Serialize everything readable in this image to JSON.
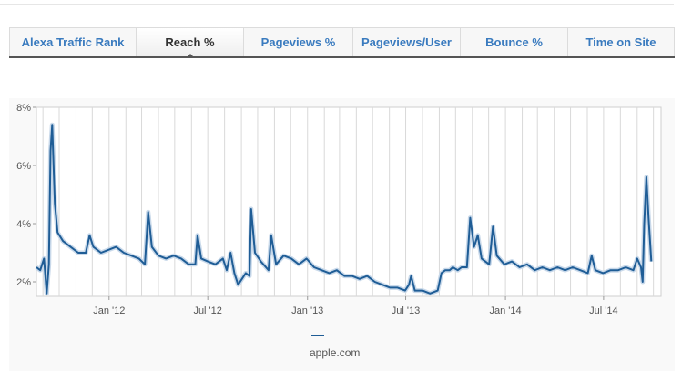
{
  "tabs": [
    {
      "label": "Alexa Traffic Rank",
      "active": false
    },
    {
      "label": "Reach %",
      "active": true
    },
    {
      "label": "Pageviews %",
      "active": false
    },
    {
      "label": "Pageviews/User",
      "active": false
    },
    {
      "label": "Bounce %",
      "active": false
    },
    {
      "label": "Time on Site",
      "active": false
    }
  ],
  "colors": {
    "series": "#1f5d96",
    "tab_link": "#3a7bbf",
    "grid": "#d9d9d9"
  },
  "chart_data": {
    "type": "line",
    "title": "",
    "xlabel": "",
    "ylabel": "",
    "ylim": [
      1.5,
      8
    ],
    "yticks": [
      {
        "value": 2,
        "label": "2%"
      },
      {
        "value": 4,
        "label": "4%"
      },
      {
        "value": 6,
        "label": "6%"
      },
      {
        "value": 8,
        "label": "8%"
      }
    ],
    "xticks": [
      {
        "date": "2012-01-01",
        "label": "Jan '12"
      },
      {
        "date": "2012-07-01",
        "label": "Jul '12"
      },
      {
        "date": "2013-01-01",
        "label": "Jan '13"
      },
      {
        "date": "2013-07-01",
        "label": "Jul '13"
      },
      {
        "date": "2014-01-01",
        "label": "Jan '14"
      },
      {
        "date": "2014-07-01",
        "label": "Jul '14"
      }
    ],
    "xlim": [
      "2011-08-20",
      "2014-10-15"
    ],
    "grid": true,
    "legend_position": "bottom",
    "series": [
      {
        "name": "apple.com",
        "points": [
          [
            "2011-08-20",
            2.5
          ],
          [
            "2011-08-27",
            2.4
          ],
          [
            "2011-09-03",
            2.8
          ],
          [
            "2011-09-08",
            1.6
          ],
          [
            "2011-09-12",
            2.6
          ],
          [
            "2011-09-15",
            6.5
          ],
          [
            "2011-09-18",
            7.4
          ],
          [
            "2011-09-23",
            4.7
          ],
          [
            "2011-09-28",
            3.7
          ],
          [
            "2011-10-08",
            3.4
          ],
          [
            "2011-10-22",
            3.2
          ],
          [
            "2011-11-05",
            3.0
          ],
          [
            "2011-11-19",
            3.0
          ],
          [
            "2011-11-26",
            3.6
          ],
          [
            "2011-12-03",
            3.2
          ],
          [
            "2011-12-17",
            3.0
          ],
          [
            "2011-12-31",
            3.1
          ],
          [
            "2012-01-14",
            3.2
          ],
          [
            "2012-01-28",
            3.0
          ],
          [
            "2012-02-11",
            2.9
          ],
          [
            "2012-02-25",
            2.8
          ],
          [
            "2012-03-07",
            2.6
          ],
          [
            "2012-03-13",
            4.4
          ],
          [
            "2012-03-20",
            3.2
          ],
          [
            "2012-04-01",
            2.9
          ],
          [
            "2012-04-15",
            2.8
          ],
          [
            "2012-04-29",
            2.9
          ],
          [
            "2012-05-13",
            2.8
          ],
          [
            "2012-05-27",
            2.6
          ],
          [
            "2012-06-08",
            2.6
          ],
          [
            "2012-06-12",
            3.6
          ],
          [
            "2012-06-19",
            2.8
          ],
          [
            "2012-07-01",
            2.7
          ],
          [
            "2012-07-15",
            2.6
          ],
          [
            "2012-07-29",
            2.8
          ],
          [
            "2012-08-05",
            2.4
          ],
          [
            "2012-08-12",
            3.0
          ],
          [
            "2012-08-19",
            2.3
          ],
          [
            "2012-08-26",
            1.9
          ],
          [
            "2012-09-02",
            2.1
          ],
          [
            "2012-09-09",
            2.3
          ],
          [
            "2012-09-16",
            2.2
          ],
          [
            "2012-09-19",
            4.5
          ],
          [
            "2012-09-26",
            3.0
          ],
          [
            "2012-10-07",
            2.7
          ],
          [
            "2012-10-21",
            2.4
          ],
          [
            "2012-10-26",
            3.6
          ],
          [
            "2012-11-04",
            2.6
          ],
          [
            "2012-11-18",
            2.9
          ],
          [
            "2012-12-02",
            2.8
          ],
          [
            "2012-12-16",
            2.6
          ],
          [
            "2012-12-30",
            2.8
          ],
          [
            "2013-01-13",
            2.5
          ],
          [
            "2013-01-27",
            2.4
          ],
          [
            "2013-02-10",
            2.3
          ],
          [
            "2013-02-24",
            2.4
          ],
          [
            "2013-03-10",
            2.2
          ],
          [
            "2013-03-24",
            2.2
          ],
          [
            "2013-04-07",
            2.1
          ],
          [
            "2013-04-21",
            2.2
          ],
          [
            "2013-05-05",
            2.0
          ],
          [
            "2013-05-19",
            1.9
          ],
          [
            "2013-06-02",
            1.8
          ],
          [
            "2013-06-16",
            1.8
          ],
          [
            "2013-06-30",
            1.7
          ],
          [
            "2013-07-07",
            1.9
          ],
          [
            "2013-07-11",
            2.2
          ],
          [
            "2013-07-18",
            1.7
          ],
          [
            "2013-08-01",
            1.7
          ],
          [
            "2013-08-15",
            1.6
          ],
          [
            "2013-08-29",
            1.7
          ],
          [
            "2013-09-05",
            2.3
          ],
          [
            "2013-09-12",
            2.4
          ],
          [
            "2013-09-20",
            2.4
          ],
          [
            "2013-09-26",
            2.5
          ],
          [
            "2013-10-05",
            2.4
          ],
          [
            "2013-10-12",
            2.5
          ],
          [
            "2013-10-22",
            2.5
          ],
          [
            "2013-10-28",
            4.2
          ],
          [
            "2013-11-04",
            3.2
          ],
          [
            "2013-11-11",
            3.6
          ],
          [
            "2013-11-18",
            2.8
          ],
          [
            "2013-12-02",
            2.6
          ],
          [
            "2013-12-09",
            3.9
          ],
          [
            "2013-12-16",
            2.9
          ],
          [
            "2013-12-30",
            2.6
          ],
          [
            "2014-01-13",
            2.7
          ],
          [
            "2014-01-27",
            2.5
          ],
          [
            "2014-02-10",
            2.6
          ],
          [
            "2014-02-24",
            2.4
          ],
          [
            "2014-03-10",
            2.5
          ],
          [
            "2014-03-24",
            2.4
          ],
          [
            "2014-04-07",
            2.5
          ],
          [
            "2014-04-21",
            2.4
          ],
          [
            "2014-05-05",
            2.5
          ],
          [
            "2014-05-19",
            2.4
          ],
          [
            "2014-06-02",
            2.3
          ],
          [
            "2014-06-09",
            2.9
          ],
          [
            "2014-06-16",
            2.4
          ],
          [
            "2014-06-30",
            2.3
          ],
          [
            "2014-07-14",
            2.4
          ],
          [
            "2014-07-28",
            2.4
          ],
          [
            "2014-08-11",
            2.5
          ],
          [
            "2014-08-25",
            2.4
          ],
          [
            "2014-09-01",
            2.8
          ],
          [
            "2014-09-08",
            2.5
          ],
          [
            "2014-09-11",
            2.0
          ],
          [
            "2014-09-14",
            4.0
          ],
          [
            "2014-09-18",
            5.6
          ],
          [
            "2014-09-22",
            4.2
          ],
          [
            "2014-09-27",
            2.7
          ]
        ]
      }
    ]
  }
}
